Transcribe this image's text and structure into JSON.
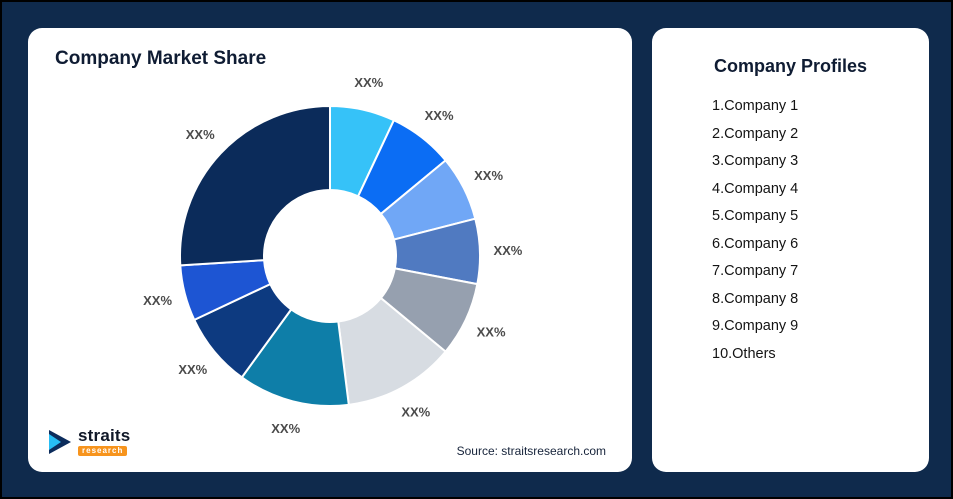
{
  "page": {
    "background": "#0f2a4c"
  },
  "left_card": {
    "title": "Company Market Share",
    "source": "Source: straitsresearch.com"
  },
  "logo": {
    "brand": "straits",
    "sub": "research"
  },
  "right_card": {
    "title": "Company Profiles",
    "items": [
      "1.Company 1",
      "2.Company 2",
      "3.Company 3",
      "4.Company 4",
      "5.Company 5",
      "6.Company 6",
      "7.Company 7",
      "8.Company 8",
      "9.Company 9",
      "10.Others"
    ]
  },
  "chart_data": {
    "type": "pie",
    "subtype": "donut",
    "title": "Company Market Share",
    "legend_position": "none",
    "start_angle_deg": 0,
    "direction": "clockwise",
    "note": "All slice labels are placeholder text XX%; percentages estimated from arc angles.",
    "slices": [
      {
        "name": "Company 1",
        "label": "XX%",
        "value_pct_est": 7,
        "color": "#36c2f8"
      },
      {
        "name": "Company 2",
        "label": "XX%",
        "value_pct_est": 7,
        "color": "#0b6df4"
      },
      {
        "name": "Company 3",
        "label": "XX%",
        "value_pct_est": 7,
        "color": "#70a7f6"
      },
      {
        "name": "Company 4",
        "label": "XX%",
        "value_pct_est": 7,
        "color": "#507ac1"
      },
      {
        "name": "Company 5",
        "label": "XX%",
        "value_pct_est": 8,
        "color": "#96a0af"
      },
      {
        "name": "Company 6",
        "label": "XX%",
        "value_pct_est": 12,
        "color": "#d7dce2"
      },
      {
        "name": "Company 7",
        "label": "XX%",
        "value_pct_est": 12,
        "color": "#0e7ea8"
      },
      {
        "name": "Company 8",
        "label": "XX%",
        "value_pct_est": 8,
        "color": "#0d3a80"
      },
      {
        "name": "Company 9",
        "label": "XX%",
        "value_pct_est": 6,
        "color": "#1d55d3"
      },
      {
        "name": "Others",
        "label": "XX%",
        "value_pct_est": 26,
        "color": "#0b2b5a"
      }
    ]
  }
}
